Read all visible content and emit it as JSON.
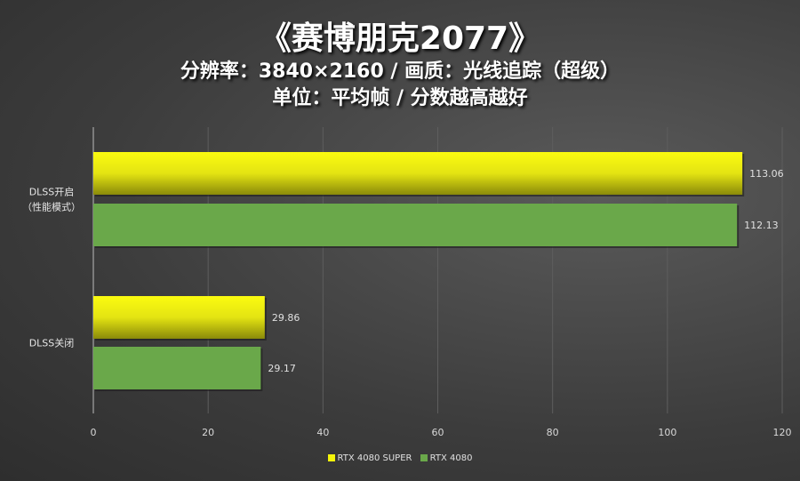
{
  "chart_data": {
    "type": "bar",
    "orientation": "horizontal",
    "title": "《赛博朋克2077》",
    "subtitle_lines": [
      "分辨率：3840×2160 / 画质：光线追踪（超级）",
      "单位：平均帧 / 分数越高越好"
    ],
    "categories": [
      [
        "DLSS开启",
        "（性能模式）"
      ],
      [
        "DLSS关闭"
      ]
    ],
    "series": [
      {
        "name": "RTX 4080 SUPER",
        "color": "#f5f50a",
        "values": [
          113.06,
          29.86
        ]
      },
      {
        "name": "RTX 4080",
        "color": "#6aa84a",
        "values": [
          112.13,
          29.17
        ]
      }
    ],
    "xlim": [
      0,
      120
    ],
    "xticks": [
      0,
      20,
      40,
      60,
      80,
      100,
      120
    ],
    "grid": true,
    "legend": "bottom"
  }
}
